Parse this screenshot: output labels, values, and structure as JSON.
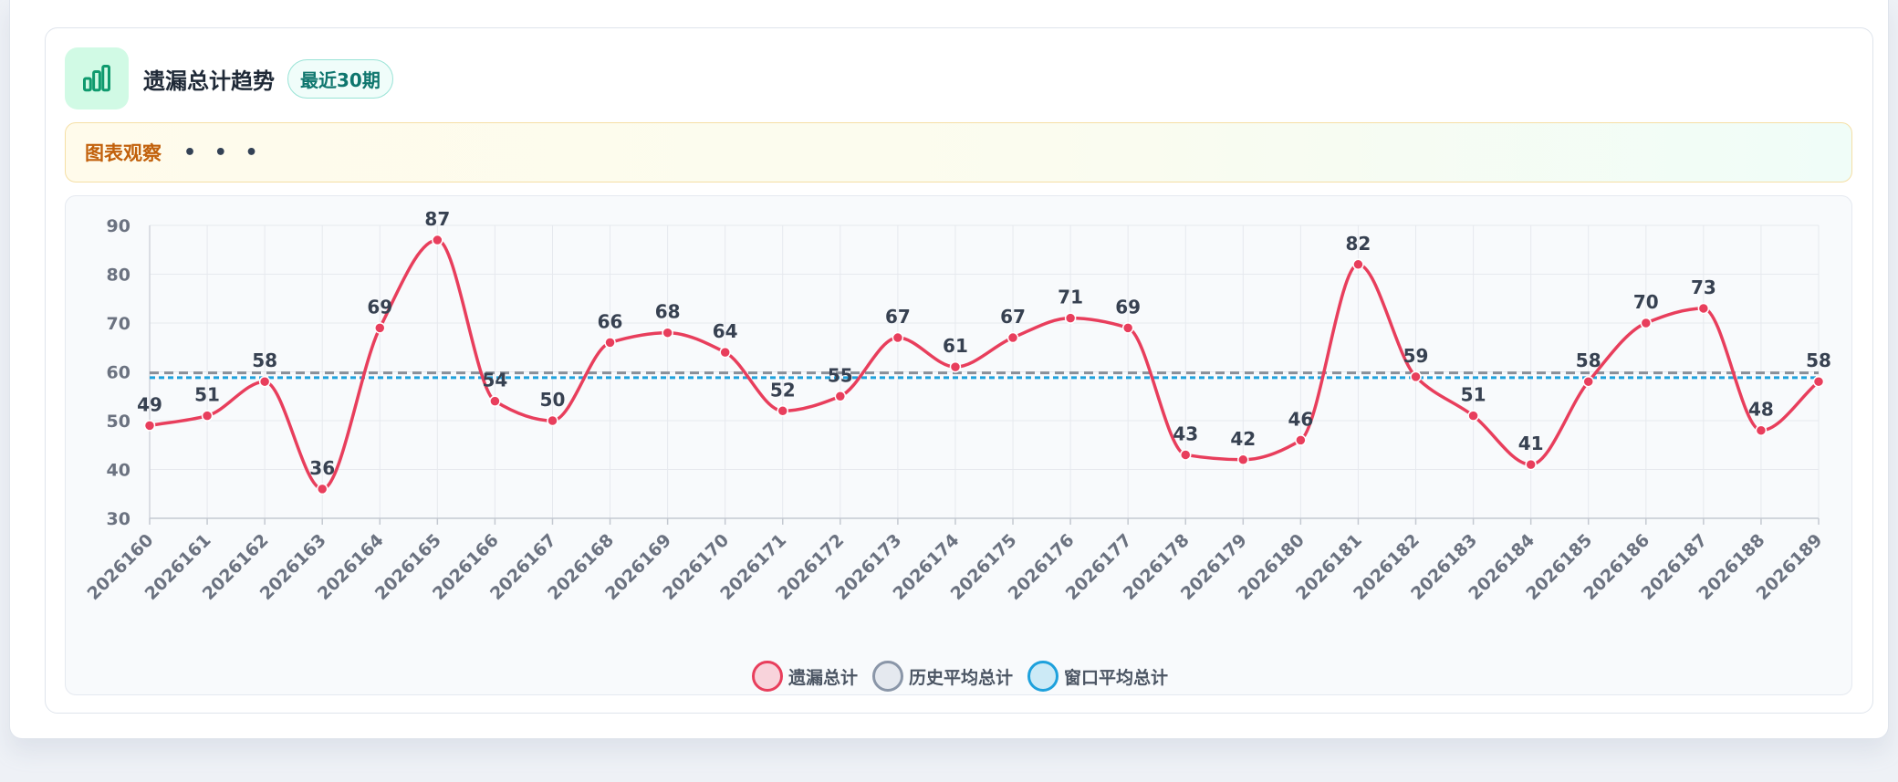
{
  "header": {
    "title": "遗漏总计趋势",
    "badge": "最近30期"
  },
  "observation": {
    "title": "图表观察",
    "more": "• • •"
  },
  "chart_data": {
    "type": "line",
    "x": [
      "2026160",
      "2026161",
      "2026162",
      "2026163",
      "2026164",
      "2026165",
      "2026166",
      "2026167",
      "2026168",
      "2026169",
      "2026170",
      "2026171",
      "2026172",
      "2026173",
      "2026174",
      "2026175",
      "2026176",
      "2026177",
      "2026178",
      "2026179",
      "2026180",
      "2026181",
      "2026182",
      "2026183",
      "2026184",
      "2026185",
      "2026186",
      "2026187",
      "2026188",
      "2026189"
    ],
    "series": [
      {
        "name": "遗漏总计",
        "values": [
          49,
          51,
          58,
          36,
          69,
          87,
          54,
          50,
          66,
          68,
          64,
          52,
          55,
          67,
          61,
          67,
          71,
          69,
          43,
          42,
          46,
          82,
          59,
          51,
          41,
          58,
          70,
          73,
          48,
          58
        ],
        "color": "#e83e5c",
        "style": "smooth-line-with-points",
        "data_labels": true
      },
      {
        "name": "历史平均总计",
        "value": 59.8,
        "color": "#8a8f98",
        "style": "dashed"
      },
      {
        "name": "窗口平均总计",
        "value": 58.8,
        "color": "#1ea1dc",
        "style": "dotted"
      }
    ],
    "yticks": [
      30,
      40,
      50,
      60,
      70,
      80,
      90
    ],
    "ylim": [
      30,
      90
    ],
    "grid": true,
    "legend": "bottom-center"
  },
  "legend": [
    {
      "label": "遗漏总计",
      "fill": "#f8d3db",
      "stroke": "#e83e5c"
    },
    {
      "label": "历史平均总计",
      "fill": "#e5e9ef",
      "stroke": "#8a96a8"
    },
    {
      "label": "窗口平均总计",
      "fill": "#cceaf6",
      "stroke": "#1ea1dc"
    }
  ]
}
